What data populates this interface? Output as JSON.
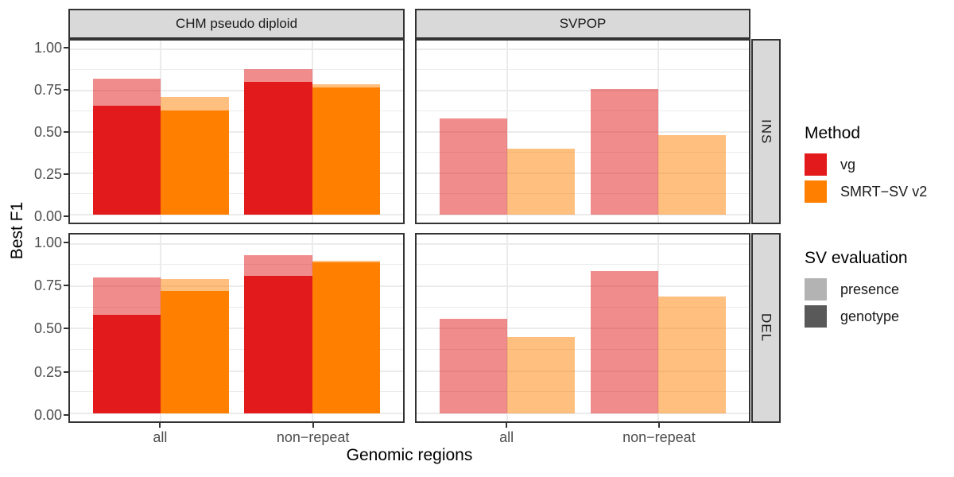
{
  "chart_data": {
    "type": "bar",
    "title": "",
    "xlabel": "Genomic regions",
    "ylabel": "Best F1",
    "col_facets": [
      "CHM pseudo diploid",
      "SVPOP"
    ],
    "row_facets": [
      "INS",
      "DEL"
    ],
    "x_categories": [
      "all",
      "non−repeat"
    ],
    "y_axis": {
      "min": 0,
      "max": 1,
      "major_ticks": [
        {
          "value": 1.0,
          "label": "1.00"
        },
        {
          "value": 0.75,
          "label": "0.75"
        },
        {
          "value": 0.5,
          "label": "0.50"
        },
        {
          "value": 0.25,
          "label": "0.25"
        },
        {
          "value": 0.0,
          "label": "0.00"
        }
      ],
      "minor_gridlines": [
        0.125,
        0.375,
        0.625,
        0.875
      ],
      "grid": "on",
      "legend_position": "right"
    },
    "methods": [
      {
        "name": "vg",
        "color": "#E31A1C"
      },
      {
        "name": "SMRT−SV v2",
        "color": "#FF7F00"
      }
    ],
    "sv_evaluation_styles": {
      "presence_alpha": 0.5,
      "genotype_alpha": 1.0
    },
    "facets": [
      {
        "col": "CHM pseudo diploid",
        "row": "INS",
        "series": [
          {
            "method": "vg",
            "category": "all",
            "presence": 0.82,
            "genotype": 0.66
          },
          {
            "method": "SMRT−SV v2",
            "category": "all",
            "presence": 0.71,
            "genotype": 0.63
          },
          {
            "method": "vg",
            "category": "non−repeat",
            "presence": 0.88,
            "genotype": 0.8
          },
          {
            "method": "SMRT−SV v2",
            "category": "non−repeat",
            "presence": 0.79,
            "genotype": 0.77
          }
        ]
      },
      {
        "col": "SVPOP",
        "row": "INS",
        "series": [
          {
            "method": "vg",
            "category": "all",
            "presence": 0.58,
            "genotype": null
          },
          {
            "method": "SMRT−SV v2",
            "category": "all",
            "presence": 0.4,
            "genotype": null
          },
          {
            "method": "vg",
            "category": "non−repeat",
            "presence": 0.76,
            "genotype": null
          },
          {
            "method": "SMRT−SV v2",
            "category": "non−repeat",
            "presence": 0.48,
            "genotype": null
          }
        ]
      },
      {
        "col": "CHM pseudo diploid",
        "row": "DEL",
        "series": [
          {
            "method": "vg",
            "category": "all",
            "presence": 0.8,
            "genotype": 0.58
          },
          {
            "method": "SMRT−SV v2",
            "category": "all",
            "presence": 0.79,
            "genotype": 0.72
          },
          {
            "method": "vg",
            "category": "non−repeat",
            "presence": 0.93,
            "genotype": 0.81
          },
          {
            "method": "SMRT−SV v2",
            "category": "non−repeat",
            "presence": 0.9,
            "genotype": 0.89
          }
        ]
      },
      {
        "col": "SVPOP",
        "row": "DEL",
        "series": [
          {
            "method": "vg",
            "category": "all",
            "presence": 0.56,
            "genotype": null
          },
          {
            "method": "SMRT−SV v2",
            "category": "all",
            "presence": 0.45,
            "genotype": null
          },
          {
            "method": "vg",
            "category": "non−repeat",
            "presence": 0.84,
            "genotype": null
          },
          {
            "method": "SMRT−SV v2",
            "category": "non−repeat",
            "presence": 0.69,
            "genotype": null
          }
        ]
      }
    ]
  },
  "legend": {
    "method": {
      "title": "Method",
      "items": [
        {
          "label": "vg",
          "swatch": "#E31A1C"
        },
        {
          "label": "SMRT−SV v2",
          "swatch": "#FF7F00"
        }
      ]
    },
    "sv_evaluation": {
      "title": "SV evaluation",
      "items": [
        {
          "label": "presence",
          "swatch": "#B3B3B3"
        },
        {
          "label": "genotype",
          "swatch": "#595959"
        }
      ]
    }
  },
  "colors": {
    "strip_background": "#D9D9D9",
    "panel_border": "#333333",
    "gridline": "#EBEBEB",
    "axis_text": "#4D4D4D",
    "title_text": "#000000",
    "vg": "#E31A1C",
    "smrt_sv_v2": "#FF7F00",
    "legend_presence_swatch": "#B3B3B3",
    "legend_genotype_swatch": "#595959"
  }
}
